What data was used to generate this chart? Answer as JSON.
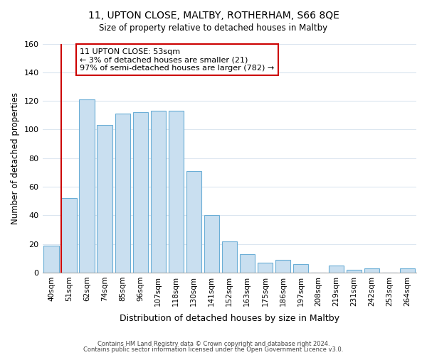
{
  "title": "11, UPTON CLOSE, MALTBY, ROTHERHAM, S66 8QE",
  "subtitle": "Size of property relative to detached houses in Maltby",
  "xlabel": "Distribution of detached houses by size in Maltby",
  "ylabel": "Number of detached properties",
  "bar_labels": [
    "40sqm",
    "51sqm",
    "62sqm",
    "74sqm",
    "85sqm",
    "96sqm",
    "107sqm",
    "118sqm",
    "130sqm",
    "141sqm",
    "152sqm",
    "163sqm",
    "175sqm",
    "186sqm",
    "197sqm",
    "208sqm",
    "219sqm",
    "231sqm",
    "242sqm",
    "253sqm",
    "264sqm"
  ],
  "bar_values": [
    19,
    52,
    121,
    103,
    111,
    112,
    113,
    113,
    71,
    40,
    22,
    13,
    7,
    9,
    6,
    0,
    5,
    2,
    3,
    0,
    3
  ],
  "bar_color": "#c9dff0",
  "bar_edge_color": "#6baed6",
  "vline_x_index": 1,
  "vline_color": "#cc0000",
  "ylim": [
    0,
    160
  ],
  "yticks": [
    0,
    20,
    40,
    60,
    80,
    100,
    120,
    140,
    160
  ],
  "annotation_title": "11 UPTON CLOSE: 53sqm",
  "annotation_line1": "← 3% of detached houses are smaller (21)",
  "annotation_line2": "97% of semi-detached houses are larger (782) →",
  "annotation_box_color": "#ffffff",
  "annotation_box_edge": "#cc0000",
  "footer_line1": "Contains HM Land Registry data © Crown copyright and database right 2024.",
  "footer_line2": "Contains public sector information licensed under the Open Government Licence v3.0.",
  "grid_color": "#dce6f0",
  "background_color": "#ffffff"
}
